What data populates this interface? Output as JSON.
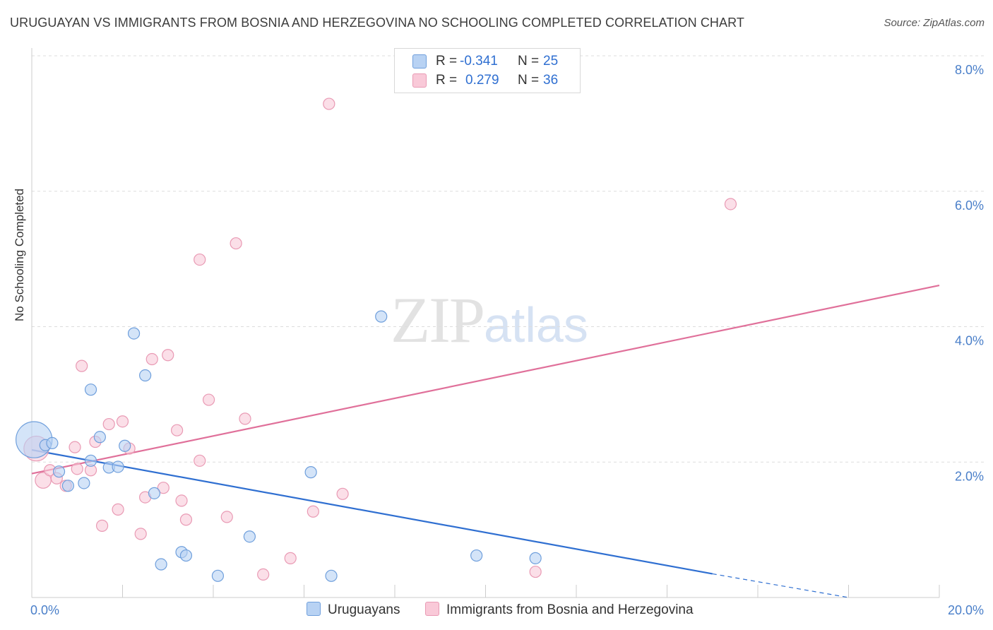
{
  "title": "URUGUAYAN VS IMMIGRANTS FROM BOSNIA AND HERZEGOVINA NO SCHOOLING COMPLETED CORRELATION CHART",
  "source": "Source: ZipAtlas.com",
  "watermark": {
    "zip": "ZIP",
    "atlas": "atlas"
  },
  "colors": {
    "blue_fill": "#b8d2f3",
    "blue_stroke": "#6f9fdc",
    "blue_line": "#2f6fd1",
    "pink_fill": "#f9c9d8",
    "pink_stroke": "#e99ab4",
    "pink_line": "#e0709a",
    "grid": "#dddddd",
    "tick_text": "#4a7fc9"
  },
  "legend": {
    "rows": [
      {
        "r_label": "R =",
        "r_value": "-0.341",
        "n_label": "N =",
        "n_value": "25"
      },
      {
        "r_label": "R =",
        "r_value": "0.279",
        "n_label": "N =",
        "n_value": "36"
      }
    ]
  },
  "chart_data": {
    "type": "scatter",
    "title": "URUGUAYAN VS IMMIGRANTS FROM BOSNIA AND HERZEGOVINA NO SCHOOLING COMPLETED CORRELATION CHART",
    "ylabel": "No Schooling Completed",
    "xlabel": "",
    "xlim": [
      0,
      20
    ],
    "ylim": [
      0,
      8.2
    ],
    "x_tick_labels": [
      "0.0%",
      "20.0%"
    ],
    "y_ticks": [
      2,
      4,
      6,
      8
    ],
    "y_tick_labels": [
      "2.0%",
      "4.0%",
      "6.0%",
      "8.0%"
    ],
    "legend_position": "top-center",
    "series": [
      {
        "name": "Uruguayans",
        "color": "#6f9fdc",
        "r": -0.341,
        "n": 25,
        "points": [
          [
            0.05,
            2.33,
            3.2
          ],
          [
            0.3,
            2.25,
            1
          ],
          [
            0.45,
            2.28,
            1
          ],
          [
            0.6,
            1.86,
            1
          ],
          [
            0.8,
            1.65,
            1
          ],
          [
            1.15,
            1.69,
            1
          ],
          [
            1.3,
            2.02,
            1
          ],
          [
            1.3,
            3.07,
            1
          ],
          [
            1.5,
            2.37,
            1
          ],
          [
            1.7,
            1.92,
            1
          ],
          [
            1.9,
            1.93,
            1
          ],
          [
            2.05,
            2.24,
            1
          ],
          [
            2.25,
            3.9,
            1
          ],
          [
            2.5,
            3.28,
            1
          ],
          [
            2.7,
            1.54,
            1
          ],
          [
            2.85,
            0.49,
            1
          ],
          [
            3.3,
            0.67,
            1
          ],
          [
            3.4,
            0.62,
            1
          ],
          [
            4.1,
            0.32,
            1
          ],
          [
            4.8,
            0.9,
            1
          ],
          [
            6.15,
            1.85,
            1
          ],
          [
            6.6,
            0.32,
            1
          ],
          [
            7.7,
            4.15,
            1
          ],
          [
            9.8,
            0.62,
            1
          ],
          [
            11.1,
            0.58,
            1
          ]
        ],
        "trend": {
          "x": [
            0,
            15
          ],
          "y": [
            2.18,
            0.35
          ]
        },
        "trend_extension": {
          "x": [
            15,
            18
          ],
          "y": [
            0.35,
            0.0
          ]
        }
      },
      {
        "name": "Immigrants from Bosnia and Herzegovina",
        "color": "#e99ab4",
        "r": 0.279,
        "n": 36,
        "points": [
          [
            0.1,
            2.2,
            2.2
          ],
          [
            0.25,
            1.73,
            1.4
          ],
          [
            0.4,
            1.88,
            1
          ],
          [
            0.55,
            1.76,
            1
          ],
          [
            0.75,
            1.65,
            1
          ],
          [
            0.95,
            2.22,
            1
          ],
          [
            1.0,
            1.9,
            1
          ],
          [
            1.1,
            3.42,
            1
          ],
          [
            1.3,
            1.88,
            1
          ],
          [
            1.4,
            2.3,
            1
          ],
          [
            1.55,
            1.06,
            1
          ],
          [
            1.7,
            2.56,
            1
          ],
          [
            1.9,
            1.3,
            1
          ],
          [
            2.0,
            2.6,
            1
          ],
          [
            2.15,
            2.2,
            1
          ],
          [
            2.4,
            0.94,
            1
          ],
          [
            2.5,
            1.48,
            1
          ],
          [
            2.65,
            3.52,
            1
          ],
          [
            2.9,
            1.62,
            1
          ],
          [
            3.0,
            3.58,
            1
          ],
          [
            3.2,
            2.47,
            1
          ],
          [
            3.3,
            1.43,
            1
          ],
          [
            3.4,
            1.15,
            1
          ],
          [
            3.7,
            4.99,
            1
          ],
          [
            3.7,
            2.02,
            1
          ],
          [
            3.9,
            2.92,
            1
          ],
          [
            4.3,
            1.19,
            1
          ],
          [
            4.5,
            5.23,
            1
          ],
          [
            4.7,
            2.64,
            1
          ],
          [
            5.1,
            0.34,
            1
          ],
          [
            5.7,
            0.58,
            1
          ],
          [
            6.2,
            1.27,
            1
          ],
          [
            6.55,
            7.29,
            1
          ],
          [
            6.85,
            1.53,
            1
          ],
          [
            11.1,
            0.38,
            1
          ],
          [
            15.4,
            5.81,
            1
          ]
        ],
        "trend": {
          "x": [
            0,
            20
          ],
          "y": [
            1.83,
            4.61
          ]
        }
      }
    ]
  }
}
